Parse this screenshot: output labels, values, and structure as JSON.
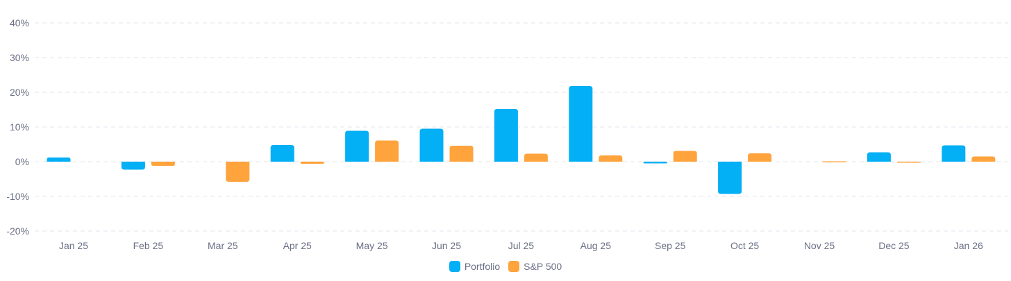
{
  "chart_data": {
    "type": "bar",
    "categories": [
      "Jan 25",
      "Feb 25",
      "Mar 25",
      "Apr 25",
      "May 25",
      "Jun 25",
      "Jul 25",
      "Aug 25",
      "Sep 25",
      "Oct 25",
      "Nov 25",
      "Dec 25",
      "Jan 26"
    ],
    "series": [
      {
        "name": "Portfolio",
        "color": "#03aff5",
        "values": [
          1.2,
          -2.3,
          0,
          4.8,
          8.9,
          9.5,
          15.2,
          21.8,
          -0.5,
          -9.3,
          0,
          2.7,
          4.7
        ]
      },
      {
        "name": "S&P 500",
        "color": "#ffa33d",
        "values": [
          0,
          -1.2,
          -5.8,
          -0.6,
          6.1,
          4.6,
          2.3,
          1.8,
          3.1,
          2.4,
          0.1,
          -0.3,
          1.5
        ]
      }
    ],
    "yticks": [
      "40%",
      "30%",
      "20%",
      "10%",
      "0%",
      "-10%",
      "-20%"
    ],
    "ylim": [
      -20,
      40
    ],
    "grid": true,
    "legend_position": "bottom-center",
    "title": "",
    "xlabel": "",
    "ylabel": ""
  }
}
